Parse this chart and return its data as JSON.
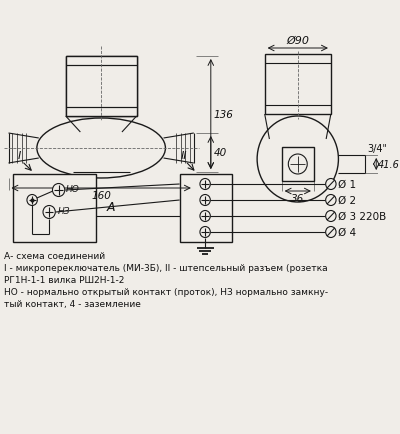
{
  "bg_color": "#f0ede8",
  "line_color": "#1a1a1a",
  "text_color": "#111111",
  "annotation_texts": [
    "А- схема соединений",
    "I - микропереключатель (МИ-3Б), II - штепсельный разъем (розетка",
    "РГ1Н-1-1 вилка РШ2Н-1-2",
    "НО - нормально открытый контакт (проток), НЗ нормально замкну-",
    "тый контакт, 4 - заземление"
  ],
  "dim_160": "160",
  "dim_136": "136",
  "dim_40": "40",
  "dim_90": "Ø90",
  "dim_36": "36",
  "dim_416": "41.6",
  "dim_34": "3/4\"",
  "label_A": "A",
  "label_I": "I",
  "label_II": "II",
  "label_NO": "НО",
  "label_NZ": "НЗ",
  "labels_right": [
    "Ø 1",
    "Ø 2",
    "Ø 3 220В",
    "Ø 4"
  ]
}
